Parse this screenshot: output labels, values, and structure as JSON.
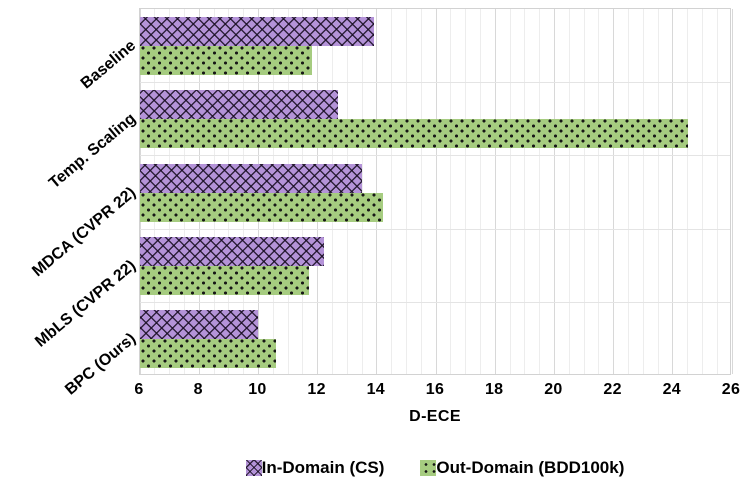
{
  "chart_data": {
    "type": "bar",
    "orientation": "horizontal",
    "title": "",
    "xlabel": "D-ECE",
    "ylabel": "",
    "xlim": [
      6,
      26
    ],
    "x_major_ticks": [
      6,
      8,
      10,
      12,
      14,
      16,
      18,
      20,
      22,
      24,
      26
    ],
    "minor_grid_step": 0.5,
    "grid": "on",
    "legend_position": "bottom-center",
    "categories": [
      "Baseline",
      "Temp. Scaling",
      "MDCA (CVPR 22)",
      "MbLS (CVPR 22)",
      "BPC (Ours)"
    ],
    "series": [
      {
        "name": "In-Domain (CS)",
        "color": "#b493d8",
        "hatch": "crosshatch",
        "values": [
          13.9,
          12.7,
          13.5,
          12.2,
          10.0
        ]
      },
      {
        "name": "Out-Domain (BDD100k)",
        "color": "#a6cc80",
        "hatch": "dots",
        "values": [
          11.8,
          24.5,
          14.2,
          11.7,
          10.6
        ]
      }
    ]
  },
  "colors": {
    "in_domain_fill": "#b493d8",
    "out_domain_fill": "#a6cc80",
    "hatch_dark": "#1a1122",
    "grid_minor": "#ededed",
    "grid_major": "#d8d8d8",
    "text": "#000000",
    "background": "#ffffff"
  }
}
